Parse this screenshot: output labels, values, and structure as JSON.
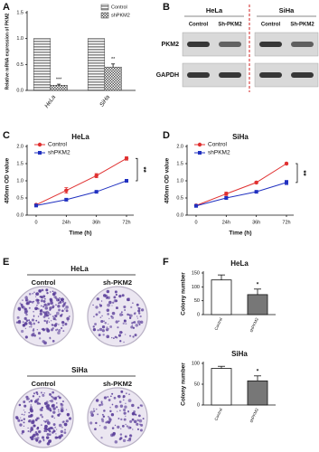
{
  "chart_data": [
    {
      "panel": "A",
      "type": "bar",
      "ylabel": "Relative mRNA expression of PKM2",
      "categories": [
        "HeLa",
        "SiHa"
      ],
      "category_style": "italic",
      "series": [
        {
          "name": "Control",
          "color": "#8c8c8c",
          "pattern": "stripes",
          "values": [
            1,
            1
          ]
        },
        {
          "name": "shPKM2",
          "color": "#555555",
          "pattern": "checker",
          "values": [
            0.1,
            0.45
          ],
          "errors": [
            0.02,
            0.06
          ],
          "significance": [
            "***",
            "**"
          ]
        }
      ],
      "ylim": [
        0,
        1.5
      ],
      "yticks": [
        {
          "value": 0,
          "label": "0.0"
        },
        {
          "value": 0.5,
          "label": "0.5"
        },
        {
          "value": 1,
          "label": "1.0"
        },
        {
          "value": 1.5,
          "label": "1.5"
        }
      ],
      "legend": "upper right"
    },
    {
      "panel": "C",
      "type": "line",
      "title": "HeLa",
      "xlabel": "Time (h)",
      "ylabel": "450nm OD value",
      "categories": [
        "0",
        "24h",
        "36h",
        "72h"
      ],
      "series": [
        {
          "name": "Control",
          "color": "#e03030",
          "marker": "circle",
          "values": [
            0.3,
            0.72,
            1.15,
            1.65
          ],
          "errors": [
            0.03,
            0.08,
            0.06,
            0.05
          ]
        },
        {
          "name": "shPKM2",
          "color": "#2030c0",
          "marker": "square",
          "values": [
            0.28,
            0.45,
            0.68,
            1.0
          ],
          "errors": [
            0.02,
            0.03,
            0.03,
            0.04
          ]
        }
      ],
      "ylim": [
        0,
        2
      ],
      "yticks": [
        {
          "value": 0,
          "label": "0.0"
        },
        {
          "value": 0.5,
          "label": "0.5"
        },
        {
          "value": 1,
          "label": "1.0"
        },
        {
          "value": 1.5,
          "label": "1.5"
        },
        {
          "value": 2,
          "label": "2.0"
        }
      ],
      "legend": "upper left",
      "significance": "**"
    },
    {
      "panel": "D",
      "type": "line",
      "title": "SiHa",
      "xlabel": "Time (h)",
      "ylabel": "450nm OD value",
      "categories": [
        "0",
        "24h",
        "36h",
        "72h"
      ],
      "series": [
        {
          "name": "Control",
          "color": "#e03030",
          "marker": "circle",
          "values": [
            0.28,
            0.62,
            0.95,
            1.5
          ],
          "errors": [
            0.02,
            0.05,
            0.03,
            0.03
          ]
        },
        {
          "name": "shPKM2",
          "color": "#2030c0",
          "marker": "square",
          "values": [
            0.27,
            0.5,
            0.68,
            0.95
          ],
          "errors": [
            0.02,
            0.03,
            0.03,
            0.06
          ]
        }
      ],
      "ylim": [
        0,
        2
      ],
      "yticks": [
        {
          "value": 0,
          "label": "0.0"
        },
        {
          "value": 0.5,
          "label": "0.5"
        },
        {
          "value": 1,
          "label": "1.0"
        },
        {
          "value": 1.5,
          "label": "1.5"
        },
        {
          "value": 2,
          "label": "2.0"
        }
      ],
      "legend": "upper left",
      "significance": "**"
    },
    {
      "panel": "F",
      "type": "bar",
      "title": "HeLa",
      "ylabel": "Colony number",
      "categories": [
        "Control",
        "shPKM2"
      ],
      "values": [
        125,
        72
      ],
      "errors": [
        18,
        20
      ],
      "colors": [
        "#ffffff",
        "#777777"
      ],
      "significance": [
        null,
        "*"
      ],
      "ylim": [
        0,
        150
      ],
      "yticks": [
        0,
        50,
        100,
        150
      ]
    },
    {
      "type": "bar",
      "title": "SiHa",
      "ylabel": "Colony number",
      "categories": [
        "Control",
        "shPKM2"
      ],
      "values": [
        88,
        58
      ],
      "errors": [
        5,
        12
      ],
      "colors": [
        "#ffffff",
        "#777777"
      ],
      "significance": [
        null,
        "*"
      ],
      "ylim": [
        0,
        100
      ],
      "yticks": [
        0,
        50,
        100
      ]
    }
  ],
  "blot": {
    "panel": "B",
    "groups": [
      {
        "name": "HeLa",
        "lanes": [
          "Control",
          "Sh-PKM2"
        ]
      },
      {
        "name": "SiHa",
        "lanes": [
          "Control",
          "Sh-PKM2"
        ]
      }
    ],
    "rows": [
      "PKM2",
      "GAPDH"
    ]
  },
  "colonies": {
    "panel": "E",
    "groups": [
      {
        "name": "HeLa",
        "lanes": [
          "Control",
          "sh-PKM2"
        ]
      },
      {
        "name": "SiHa",
        "lanes": [
          "Control",
          "sh-PKM2"
        ]
      }
    ]
  }
}
